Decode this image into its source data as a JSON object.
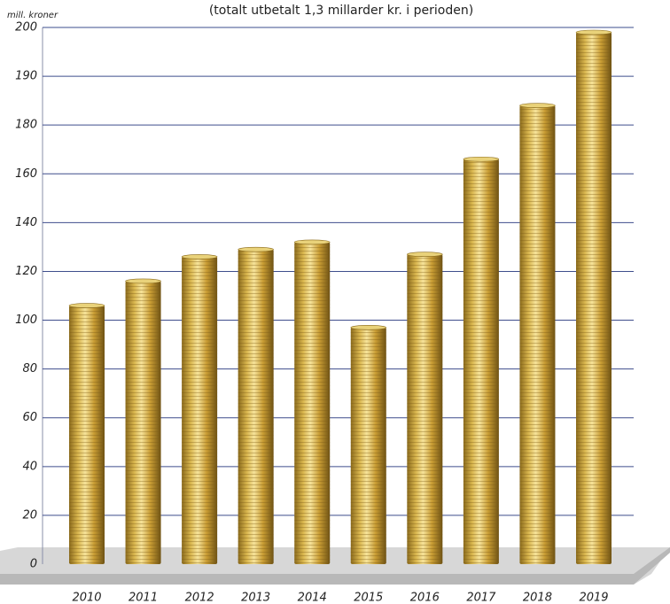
{
  "chart_data": {
    "type": "bar",
    "subtitle": "(totalt utbetalt 1,3 millarder kr. i perioden)",
    "y_axis_label": "mill. kroner",
    "categories": [
      "2010",
      "2011",
      "2012",
      "2013",
      "2014",
      "2015",
      "2016",
      "2017",
      "2018",
      "2019"
    ],
    "values": [
      106,
      116,
      126,
      129,
      132,
      97,
      127,
      166,
      184,
      199
    ],
    "color": "#c9a43a",
    "ylim": [
      0,
      200
    ],
    "yticks": [
      0,
      20,
      40,
      60,
      80,
      100,
      120,
      140,
      160,
      180,
      190,
      200
    ],
    "grid": true
  }
}
